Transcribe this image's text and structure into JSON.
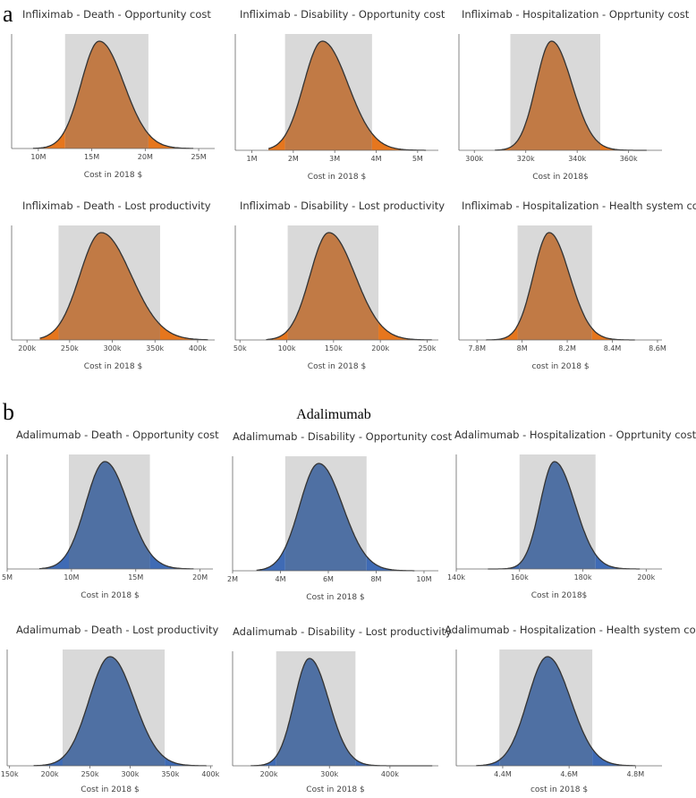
{
  "panels": [
    {
      "letter": "a",
      "group_title": ""
    },
    {
      "letter": "b",
      "group_title": "Adalimumab"
    }
  ],
  "colors": {
    "infliximab": "#c17a45",
    "infliximab_tail": "#e6761d",
    "adalimumab": "#4f70a3",
    "adalimumab_tail": "#3f6bb5",
    "ci_band": "#d9d9d9",
    "outline": "#333333"
  },
  "chart_data": [
    {
      "type": "area",
      "title": "Infliximab - Death - Opportunity cost",
      "xlabel": "Cost in 2018 $",
      "ylabel": "",
      "drug": "infliximab",
      "xlim": [
        7.5,
        26.5
      ],
      "xticks": [
        10,
        15,
        20,
        25
      ],
      "xtick_labels": [
        "10M",
        "15M",
        "20M",
        "25M"
      ],
      "ci": [
        12.5,
        20.3
      ],
      "peak": 15.7,
      "sd_left": 1.7,
      "sd_right": 2.3,
      "xmin": 9.5,
      "xmax": 24.5
    },
    {
      "type": "area",
      "title": "Infliximab - Disability - Opportunity cost",
      "xlabel": "Cost in 2018 $",
      "ylabel": "",
      "drug": "infliximab",
      "xlim": [
        0.6,
        5.5
      ],
      "xticks": [
        1,
        2,
        3,
        4,
        5
      ],
      "xtick_labels": [
        "1M",
        "2M",
        "3M",
        "4M",
        "5M"
      ],
      "ci": [
        1.8,
        3.9
      ],
      "peak": 2.7,
      "sd_left": 0.45,
      "sd_right": 0.62,
      "xmin": 1.4,
      "xmax": 5.2
    },
    {
      "type": "area",
      "title": "Infliximab - Hospitalization - Opprtunity cost",
      "xlabel": "Cost in 2018$",
      "ylabel": "",
      "drug": "infliximab",
      "xlim": [
        294,
        373
      ],
      "xticks": [
        300,
        320,
        340,
        360
      ],
      "xtick_labels": [
        "300k",
        "320k",
        "340k",
        "360k"
      ],
      "ci": [
        314,
        349
      ],
      "peak": 330,
      "sd_left": 6,
      "sd_right": 8,
      "xmin": 308,
      "xmax": 367
    },
    {
      "type": "area",
      "title": "Infliximab - Death - Lost productivity",
      "xlabel": "Cost in 2018 $",
      "ylabel": "",
      "drug": "infliximab",
      "xlim": [
        182,
        420
      ],
      "xticks": [
        200,
        250,
        300,
        350,
        400
      ],
      "xtick_labels": [
        "200k",
        "250k",
        "300k",
        "350k",
        "400k"
      ],
      "ci": [
        237,
        356
      ],
      "peak": 287,
      "sd_left": 25,
      "sd_right": 35,
      "xmin": 215,
      "xmax": 412
    },
    {
      "type": "area",
      "title": "Infliximab - Disability - Lost productivity",
      "xlabel": "Cost in 2018 $",
      "ylabel": "",
      "drug": "infliximab",
      "xlim": [
        45,
        262
      ],
      "xticks": [
        50,
        100,
        150,
        200,
        250
      ],
      "xtick_labels": [
        "50k",
        "100k",
        "150k",
        "200k",
        "250k"
      ],
      "ci": [
        101,
        198
      ],
      "peak": 145,
      "sd_left": 20,
      "sd_right": 28,
      "xmin": 78,
      "xmax": 255
    },
    {
      "type": "area",
      "title": "Infliximab - Hospitalization - Health system cost",
      "xlabel": "cost in 2018 $",
      "ylabel": "",
      "drug": "infliximab",
      "xlim": [
        7.72,
        8.62
      ],
      "xticks": [
        7.8,
        8.0,
        8.2,
        8.4,
        8.6
      ],
      "xtick_labels": [
        "7.8M",
        "8M",
        "8.2M",
        "8.4M",
        "8.6M"
      ],
      "ci": [
        7.98,
        8.31
      ],
      "peak": 8.12,
      "sd_left": 0.07,
      "sd_right": 0.09,
      "xmin": 7.84,
      "xmax": 8.5
    },
    {
      "type": "area",
      "title": "Adalimumab - Death - Opportunity cost",
      "xlabel": "Cost in 2018 $",
      "ylabel": "",
      "drug": "adalimumab",
      "xlim": [
        5,
        21
      ],
      "xticks": [
        5,
        10,
        15,
        20
      ],
      "xtick_labels": [
        "5M",
        "10M",
        "15M",
        "20M"
      ],
      "ci": [
        9.8,
        16.1
      ],
      "peak": 12.6,
      "sd_left": 1.5,
      "sd_right": 1.8,
      "xmin": 7.5,
      "xmax": 19.5
    },
    {
      "type": "area",
      "title": "Adalimumab - Disability - Opportunity cost",
      "xlabel": "Cost in 2018 $",
      "ylabel": "",
      "drug": "adalimumab",
      "xlim": [
        2,
        10.6
      ],
      "xticks": [
        2,
        4,
        6,
        8,
        10
      ],
      "xtick_labels": [
        "2M",
        "4M",
        "6M",
        "8M",
        "10M"
      ],
      "ci": [
        4.2,
        7.6
      ],
      "peak": 5.6,
      "sd_left": 0.8,
      "sd_right": 1.0,
      "xmin": 3.0,
      "xmax": 9.6
    },
    {
      "type": "area",
      "title": "Adalimumab - Hospitalization - Opprtunity cost",
      "xlabel": "Cost in 2018$",
      "ylabel": "",
      "drug": "adalimumab",
      "xlim": [
        140,
        205
      ],
      "xticks": [
        140,
        160,
        180,
        200
      ],
      "xtick_labels": [
        "140k",
        "160k",
        "180k",
        "200k"
      ],
      "ci": [
        160,
        184
      ],
      "peak": 171,
      "sd_left": 4.5,
      "sd_right": 6.5,
      "xmin": 150,
      "xmax": 198
    },
    {
      "type": "area",
      "title": "Adalimumab - Death - Lost productivity",
      "xlabel": "Cost in 2018 $",
      "ylabel": "",
      "drug": "adalimumab",
      "xlim": [
        147,
        403
      ],
      "xticks": [
        150,
        200,
        250,
        300,
        350,
        400
      ],
      "xtick_labels": [
        "150k",
        "200k",
        "250k",
        "300k",
        "350k",
        "400k"
      ],
      "ci": [
        216,
        343
      ],
      "peak": 275,
      "sd_left": 26,
      "sd_right": 30,
      "xmin": 180,
      "xmax": 395
    },
    {
      "type": "area",
      "title": "Adalimumab - Disability - Lost productivity",
      "xlabel": "Cost in 2018 $",
      "ylabel": "",
      "drug": "adalimumab",
      "xlim": [
        140,
        480
      ],
      "xticks": [
        200,
        300,
        400
      ],
      "xtick_labels": [
        "200k",
        "300k",
        "400k"
      ],
      "ci": [
        212,
        343
      ],
      "peak": 267,
      "sd_left": 25,
      "sd_right": 32,
      "xmin": 170,
      "xmax": 470
    },
    {
      "type": "area",
      "title": "Adalimumab - Hospitalization - Health system cost",
      "xlabel": "cost in 2018 $",
      "ylabel": "",
      "drug": "adalimumab",
      "xlim": [
        4.26,
        4.88
      ],
      "xticks": [
        4.4,
        4.6,
        4.8
      ],
      "xtick_labels": [
        "4.4M",
        "4.6M",
        "4.8M"
      ],
      "ci": [
        4.39,
        4.67
      ],
      "peak": 4.535,
      "sd_left": 0.06,
      "sd_right": 0.07,
      "xmin": 4.32,
      "xmax": 4.8
    }
  ]
}
